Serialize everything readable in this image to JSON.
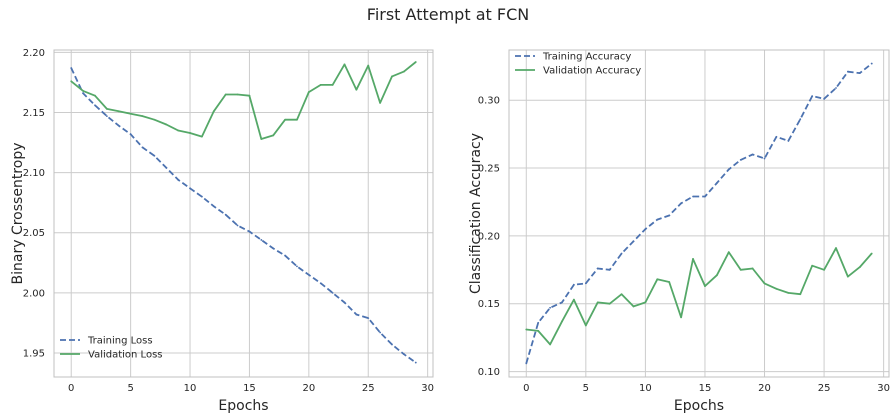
{
  "figure": {
    "title": "First Attempt at FCN"
  },
  "colors": {
    "training": "#4c72b0",
    "validation": "#55a868",
    "grid": "#cccccc",
    "frame": "#c0c0c0"
  },
  "chart_data": [
    {
      "type": "line",
      "xlabel": "Epochs",
      "ylabel": "Binary Crossentropy",
      "xlim": [
        -1.45,
        30.45
      ],
      "ylim": [
        1.93,
        2.202
      ],
      "xticks": [
        0,
        5,
        10,
        15,
        20,
        25,
        30
      ],
      "yticks": [
        1.95,
        2.0,
        2.05,
        2.1,
        2.15,
        2.2
      ],
      "ytick_labels": [
        "1.95",
        "2.00",
        "2.05",
        "2.10",
        "2.15",
        "2.20"
      ],
      "grid": true,
      "legend": "lower left",
      "x": [
        0,
        1,
        2,
        3,
        4,
        5,
        6,
        7,
        8,
        9,
        10,
        11,
        12,
        13,
        14,
        15,
        16,
        17,
        18,
        19,
        20,
        21,
        22,
        23,
        24,
        25,
        26,
        27,
        28,
        29
      ],
      "series": [
        {
          "name": "Training Loss",
          "style": "dashed",
          "values": [
            2.187,
            2.166,
            2.156,
            2.147,
            2.139,
            2.132,
            2.121,
            2.114,
            2.104,
            2.094,
            2.087,
            2.08,
            2.072,
            2.065,
            2.056,
            2.051,
            2.044,
            2.037,
            2.031,
            2.022,
            2.015,
            2.008,
            2.0,
            1.992,
            1.982,
            1.979,
            1.967,
            1.957,
            1.949,
            1.942
          ]
        },
        {
          "name": "Validation Loss",
          "style": "solid",
          "values": [
            2.176,
            2.168,
            2.164,
            2.153,
            2.151,
            2.149,
            2.147,
            2.144,
            2.14,
            2.135,
            2.133,
            2.13,
            2.151,
            2.165,
            2.165,
            2.164,
            2.128,
            2.131,
            2.144,
            2.144,
            2.167,
            2.173,
            2.173,
            2.19,
            2.169,
            2.189,
            2.158,
            2.18,
            2.184,
            2.192
          ]
        }
      ]
    },
    {
      "type": "line",
      "xlabel": "Epochs",
      "ylabel": "Classification Accuracy",
      "xlim": [
        -1.45,
        30.45
      ],
      "ylim": [
        0.096,
        0.337
      ],
      "xticks": [
        0,
        5,
        10,
        15,
        20,
        25,
        30
      ],
      "yticks": [
        0.1,
        0.15,
        0.2,
        0.25,
        0.3
      ],
      "ytick_labels": [
        "0.10",
        "0.15",
        "0.20",
        "0.25",
        "0.30"
      ],
      "grid": true,
      "legend": "upper left",
      "x": [
        0,
        1,
        2,
        3,
        4,
        5,
        6,
        7,
        8,
        9,
        10,
        11,
        12,
        13,
        14,
        15,
        16,
        17,
        18,
        19,
        20,
        21,
        22,
        23,
        24,
        25,
        26,
        27,
        28,
        29
      ],
      "series": [
        {
          "name": "Training Accuracy",
          "style": "dashed",
          "values": [
            0.106,
            0.136,
            0.147,
            0.151,
            0.164,
            0.165,
            0.176,
            0.175,
            0.187,
            0.196,
            0.205,
            0.212,
            0.215,
            0.224,
            0.229,
            0.229,
            0.239,
            0.249,
            0.256,
            0.26,
            0.257,
            0.273,
            0.27,
            0.286,
            0.303,
            0.301,
            0.309,
            0.321,
            0.32,
            0.327
          ]
        },
        {
          "name": "Validation Accuracy",
          "style": "solid",
          "values": [
            0.131,
            0.13,
            0.12,
            0.137,
            0.153,
            0.134,
            0.151,
            0.15,
            0.157,
            0.148,
            0.151,
            0.168,
            0.166,
            0.14,
            0.183,
            0.163,
            0.171,
            0.188,
            0.175,
            0.176,
            0.165,
            0.161,
            0.158,
            0.157,
            0.178,
            0.175,
            0.191,
            0.17,
            0.177,
            0.187
          ]
        }
      ]
    }
  ]
}
